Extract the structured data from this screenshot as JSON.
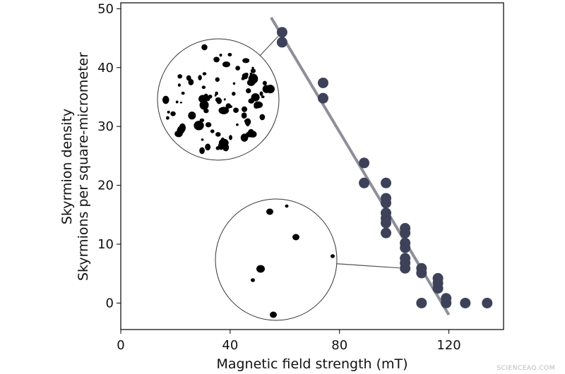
{
  "chart_data": {
    "type": "scatter",
    "xlabel": "Magnetic field strength (mT)",
    "ylabel_line1": "Skyrmion density",
    "ylabel_line2": "Skyrmions per square-micrometer",
    "xlim": [
      0,
      140
    ],
    "ylim": [
      -4.5,
      51
    ],
    "xticks": [
      0,
      40,
      80,
      120
    ],
    "yticks": [
      0,
      10,
      20,
      30,
      40,
      50
    ],
    "grid": false,
    "marker_color": "#3e4259",
    "fit_line_color": "#8e8f98",
    "points": [
      {
        "x": 59,
        "y": 46
      },
      {
        "x": 59,
        "y": 44.3
      },
      {
        "x": 74,
        "y": 37.4
      },
      {
        "x": 74,
        "y": 34.8
      },
      {
        "x": 89,
        "y": 23.8
      },
      {
        "x": 89,
        "y": 20.4
      },
      {
        "x": 97,
        "y": 20.4
      },
      {
        "x": 97,
        "y": 17.8
      },
      {
        "x": 97,
        "y": 17
      },
      {
        "x": 97,
        "y": 15.3
      },
      {
        "x": 97,
        "y": 14.4
      },
      {
        "x": 97,
        "y": 13.6
      },
      {
        "x": 97,
        "y": 11.9
      },
      {
        "x": 104,
        "y": 12.7
      },
      {
        "x": 104,
        "y": 11.9
      },
      {
        "x": 104,
        "y": 10.2
      },
      {
        "x": 104,
        "y": 9.4
      },
      {
        "x": 104,
        "y": 7.6
      },
      {
        "x": 104,
        "y": 6.8
      },
      {
        "x": 104,
        "y": 5.9
      },
      {
        "x": 110,
        "y": 5.9
      },
      {
        "x": 110,
        "y": 5.1
      },
      {
        "x": 110,
        "y": 0
      },
      {
        "x": 116,
        "y": 4.2
      },
      {
        "x": 116,
        "y": 3.4
      },
      {
        "x": 116,
        "y": 2.5
      },
      {
        "x": 119,
        "y": 0.8
      },
      {
        "x": 119,
        "y": 0
      },
      {
        "x": 126,
        "y": 0
      },
      {
        "x": 134,
        "y": 0
      }
    ],
    "fit_line": {
      "x": [
        55,
        120
      ],
      "y": [
        48.5,
        -2
      ]
    },
    "insets": [
      {
        "name": "high-density",
        "points_to": {
          "x": 59,
          "y": 46
        }
      },
      {
        "name": "low-density",
        "points_to": {
          "x": 104,
          "y": 5.9
        }
      }
    ]
  },
  "watermark": "SCIENCEAQ.COM"
}
